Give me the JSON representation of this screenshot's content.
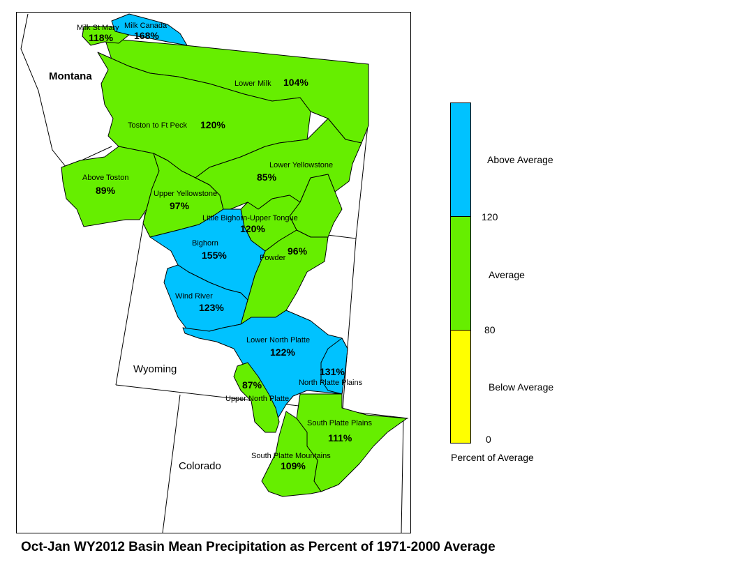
{
  "caption": "Oct-Jan WY2012 Basin Mean Precipitation as Percent of 1971-2000 Average",
  "colors": {
    "above": "#00C2FF",
    "average": "#66EE00",
    "below": "#FFFF00",
    "outline": "#000000",
    "background": "#FFFFFF"
  },
  "states": {
    "montana": "Montana",
    "wyoming": "Wyoming",
    "colorado": "Colorado"
  },
  "legend": {
    "title": "Percent of Average",
    "classes": [
      {
        "label": "Above Average",
        "color": "#00C2FF"
      },
      {
        "label": "Average",
        "color": "#66EE00"
      },
      {
        "label": "Below Average",
        "color": "#FFFF00"
      }
    ],
    "breaks": [
      "120",
      "80",
      "0"
    ]
  },
  "basins": [
    {
      "id": "milk-st-mary",
      "name": "Milk St Mary",
      "percent": "118%",
      "category": "average"
    },
    {
      "id": "milk-canada",
      "name": "Milk Canada",
      "percent": "168%",
      "category": "above"
    },
    {
      "id": "lower-milk",
      "name": "Lower Milk",
      "percent": "104%",
      "category": "average"
    },
    {
      "id": "toston-to-ft-peck",
      "name": "Toston to Ft Peck",
      "percent": "120%",
      "category": "average"
    },
    {
      "id": "above-toston",
      "name": "Above Toston",
      "percent": "89%",
      "category": "average"
    },
    {
      "id": "upper-yellowstone",
      "name": "Upper Yellowstone",
      "percent": "97%",
      "category": "average"
    },
    {
      "id": "lower-yellowstone",
      "name": "Lower Yellowstone",
      "percent": "85%",
      "category": "average"
    },
    {
      "id": "little-bighorn-upper-tongue",
      "name": "Little Bighorn-Upper Tongue",
      "percent": "120%",
      "category": "average"
    },
    {
      "id": "powder",
      "name": "Powder",
      "percent": "96%",
      "category": "average"
    },
    {
      "id": "bighorn",
      "name": "Bighorn",
      "percent": "155%",
      "category": "above"
    },
    {
      "id": "wind-river",
      "name": "Wind River",
      "percent": "123%",
      "category": "above"
    },
    {
      "id": "lower-north-platte",
      "name": "Lower North Platte",
      "percent": "122%",
      "category": "above"
    },
    {
      "id": "north-platte-plains",
      "name": "North Platte Plains",
      "percent": "131%",
      "category": "above"
    },
    {
      "id": "upper-north-platte",
      "name": "Upper North Platte",
      "percent": "87%",
      "category": "average"
    },
    {
      "id": "south-platte-plains",
      "name": "South Platte Plains",
      "percent": "111%",
      "category": "average"
    },
    {
      "id": "south-platte-mountains",
      "name": "South Platte Mountains",
      "percent": "109%",
      "category": "average"
    }
  ]
}
